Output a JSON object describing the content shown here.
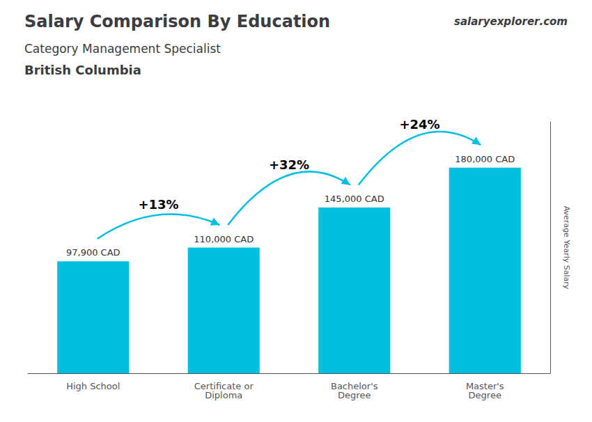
{
  "chart_data": {
    "type": "bar",
    "title": "Salary Comparison By Education",
    "subtitle": [
      "Category Management Specialist",
      "British Columbia"
    ],
    "brand": [
      "salary",
      "explorer",
      ".com"
    ],
    "categories": [
      "High School",
      "Certificate or\nDiploma",
      "Bachelor's\nDegree",
      "Master's\nDegree"
    ],
    "values": [
      97900,
      110000,
      145000,
      180000
    ],
    "value_labels": [
      "97,900 CAD",
      "110,000 CAD",
      "145,000 CAD",
      "180,000 CAD"
    ],
    "data_labels": true,
    "annotations": [
      "+13%",
      "+32%",
      "+24%"
    ],
    "ylabel": "Average Yearly Salary",
    "ylim": [
      0,
      220000
    ],
    "tick_labels": "x",
    "grid": false,
    "color": "#00bfdf"
  }
}
